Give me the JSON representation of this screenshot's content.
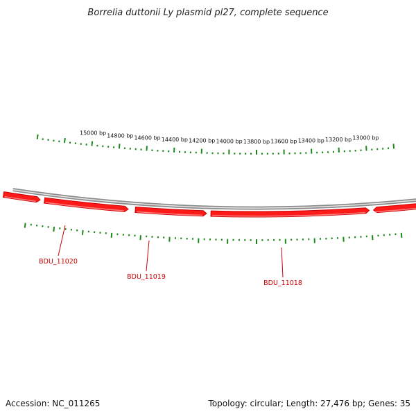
{
  "title": "Borrelia duttonii Ly plasmid pl27, complete sequence",
  "footer": {
    "accession": "Accession: NC_011265",
    "summary": "Topology: circular; Length: 27,476 bp; Genes: 35"
  },
  "colors": {
    "backbone": "#8c8c8c",
    "gene_fill": "#ff1a1a",
    "gene_edge": "#cc0000",
    "tick": "#1a8a1a"
  },
  "scale": {
    "labels": [
      {
        "bp": 15000,
        "text": "15000 bp"
      },
      {
        "bp": 14800,
        "text": "14800 bp"
      },
      {
        "bp": 14600,
        "text": "14600 bp"
      },
      {
        "bp": 14400,
        "text": "14400 bp"
      },
      {
        "bp": 14200,
        "text": "14200 bp"
      },
      {
        "bp": 14000,
        "text": "14000 bp"
      },
      {
        "bp": 13800,
        "text": "13800 bp"
      },
      {
        "bp": 13600,
        "text": "13600 bp"
      },
      {
        "bp": 13400,
        "text": "13400 bp"
      },
      {
        "bp": 13200,
        "text": "13200 bp"
      },
      {
        "bp": 13000,
        "text": "13000 bp"
      }
    ]
  },
  "genes": [
    {
      "name": "BDU_11020"
    },
    {
      "name": "BDU_11019"
    },
    {
      "name": "BDU_11018"
    }
  ]
}
